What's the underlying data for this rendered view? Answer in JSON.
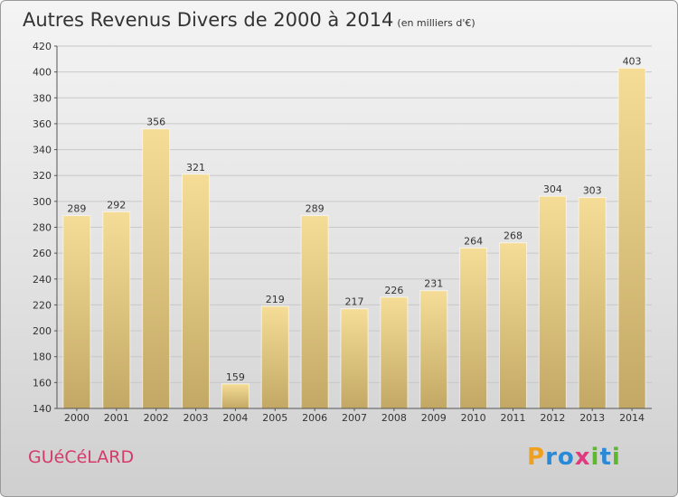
{
  "title": "Autres Revenus Divers de 2000 à 2014",
  "subtitle": "(en milliers d'€)",
  "commune": "GUéCéLARD",
  "logo": {
    "letters": [
      "P",
      "r",
      "o",
      "x",
      "i",
      "t",
      "i"
    ],
    "colors": [
      "#f0a020",
      "#2a8ad8",
      "#2a8ad8",
      "#e03a80",
      "#5cb82e",
      "#2a8ad8",
      "#5cb82e"
    ]
  },
  "colors": {
    "bar_light": "#f5dd97",
    "bar_dark": "#c2a864",
    "grid": "#c8c8c8",
    "axis": "#555555"
  },
  "chart_data": {
    "type": "bar",
    "categories": [
      "2000",
      "2001",
      "2002",
      "2003",
      "2004",
      "2005",
      "2006",
      "2007",
      "2008",
      "2009",
      "2010",
      "2011",
      "2012",
      "2013",
      "2014"
    ],
    "values": [
      289,
      292,
      356,
      321,
      159,
      219,
      289,
      217,
      226,
      231,
      264,
      268,
      304,
      303,
      403
    ],
    "title": "Autres Revenus Divers de 2000 à 2014",
    "subtitle": "(en milliers d'€)",
    "ylim": [
      140,
      420
    ],
    "yticks": [
      140,
      160,
      180,
      200,
      220,
      240,
      260,
      280,
      300,
      320,
      340,
      360,
      380,
      400,
      420
    ],
    "grid": true,
    "data_labels": true
  }
}
